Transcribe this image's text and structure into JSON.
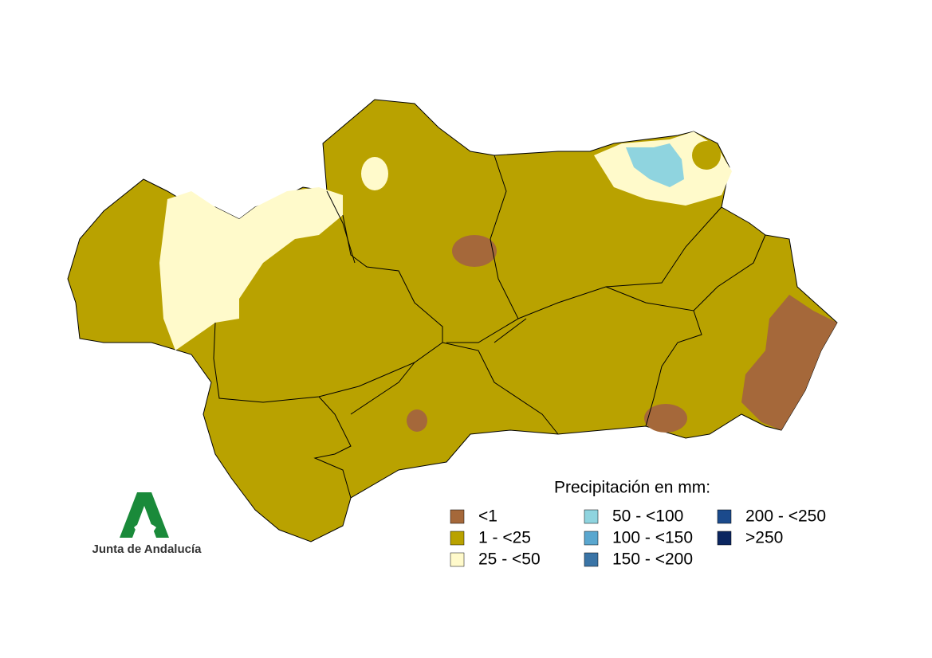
{
  "legend": {
    "title": "Precipitación en mm:",
    "items": [
      {
        "label": "<1",
        "color": "#a5683a"
      },
      {
        "label": "1 - <25",
        "color": "#b9a200"
      },
      {
        "label": "25 - <50",
        "color": "#fffacb"
      },
      {
        "label": "50 - <100",
        "color": "#8fd4df"
      },
      {
        "label": "100 - <150",
        "color": "#5aa7cf"
      },
      {
        "label": "150 - <200",
        "color": "#3a74a6"
      },
      {
        "label": "200 - <250",
        "color": "#1b4a8c"
      },
      {
        "label": ">250",
        "color": "#0b2660"
      }
    ]
  },
  "logo": {
    "text": "Junta de Andalucía"
  }
}
